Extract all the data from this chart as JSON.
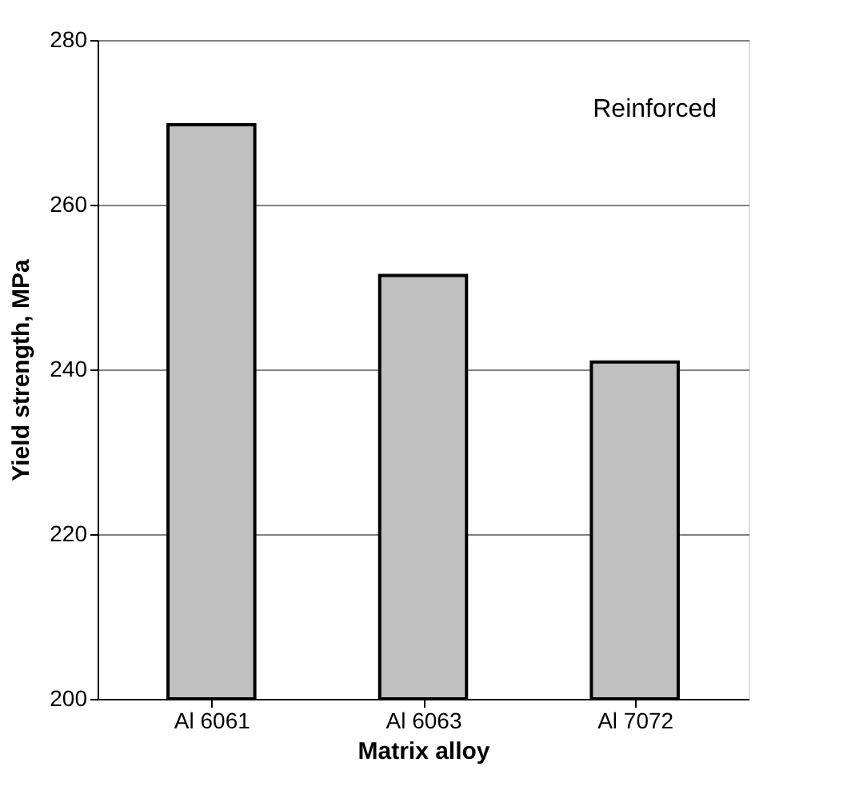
{
  "chart_data": {
    "type": "bar",
    "xlabel": "Matrix alloy",
    "ylabel": "Yield strength, MPa",
    "categories": [
      "Al 6061",
      "Al 6063",
      "Al 7072"
    ],
    "values": [
      269.7,
      251.4,
      240.9
    ],
    "color": "#c0c0c0",
    "ylim": [
      200,
      280
    ],
    "yticks": [
      200,
      220,
      240,
      260,
      280
    ],
    "grid": "y",
    "annotations": [
      "Reinforced"
    ]
  }
}
